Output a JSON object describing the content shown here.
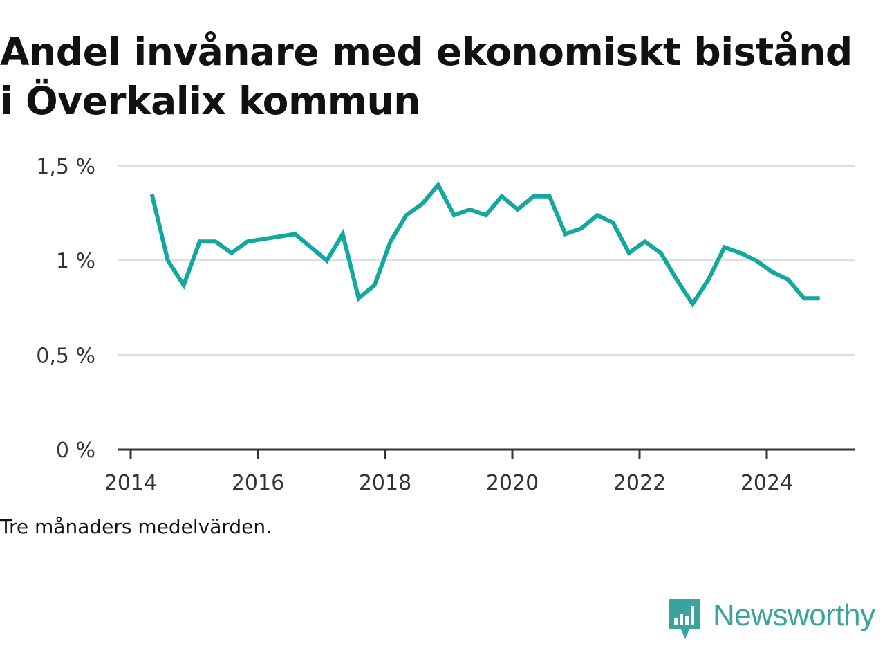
{
  "chart_data": {
    "type": "line",
    "title": "Andel invånare med ekonomiskt bistånd i Överkalix kommun",
    "caption": "Tre månaders medelvärden.",
    "xlabel": "",
    "ylabel": "",
    "x_ticks": [
      "2014",
      "2016",
      "2018",
      "2020",
      "2022",
      "2024"
    ],
    "y_ticks": [
      "0 %",
      "0,5 %",
      "1 %",
      "1,5 %"
    ],
    "ylim": [
      0,
      1.5
    ],
    "xlim": [
      "2013-11",
      "2025-04"
    ],
    "grid": true,
    "legend": "none",
    "series": [
      {
        "color": "#13a89e",
        "points": [
          {
            "x": "2014-05",
            "y": 1.35
          },
          {
            "x": "2014-08",
            "y": 1.0
          },
          {
            "x": "2014-11",
            "y": 0.87
          },
          {
            "x": "2015-02",
            "y": 1.1
          },
          {
            "x": "2015-05",
            "y": 1.1
          },
          {
            "x": "2015-08",
            "y": 1.04
          },
          {
            "x": "2015-11",
            "y": 1.1
          },
          {
            "x": "2016-08",
            "y": 1.14
          },
          {
            "x": "2017-02",
            "y": 1.0
          },
          {
            "x": "2017-05",
            "y": 1.14
          },
          {
            "x": "2017-08",
            "y": 0.8
          },
          {
            "x": "2017-11",
            "y": 0.87
          },
          {
            "x": "2018-02",
            "y": 1.1
          },
          {
            "x": "2018-05",
            "y": 1.24
          },
          {
            "x": "2018-08",
            "y": 1.3
          },
          {
            "x": "2018-11",
            "y": 1.4
          },
          {
            "x": "2019-02",
            "y": 1.24
          },
          {
            "x": "2019-05",
            "y": 1.27
          },
          {
            "x": "2019-08",
            "y": 1.24
          },
          {
            "x": "2019-11",
            "y": 1.34
          },
          {
            "x": "2020-02",
            "y": 1.27
          },
          {
            "x": "2020-05",
            "y": 1.34
          },
          {
            "x": "2020-08",
            "y": 1.34
          },
          {
            "x": "2020-11",
            "y": 1.14
          },
          {
            "x": "2021-02",
            "y": 1.17
          },
          {
            "x": "2021-05",
            "y": 1.24
          },
          {
            "x": "2021-08",
            "y": 1.2
          },
          {
            "x": "2021-11",
            "y": 1.04
          },
          {
            "x": "2022-02",
            "y": 1.1
          },
          {
            "x": "2022-05",
            "y": 1.04
          },
          {
            "x": "2022-08",
            "y": 0.9
          },
          {
            "x": "2022-11",
            "y": 0.77
          },
          {
            "x": "2023-02",
            "y": 0.9
          },
          {
            "x": "2023-05",
            "y": 1.07
          },
          {
            "x": "2023-08",
            "y": 1.04
          },
          {
            "x": "2023-11",
            "y": 1.0
          },
          {
            "x": "2024-02",
            "y": 0.94
          },
          {
            "x": "2024-05",
            "y": 0.9
          },
          {
            "x": "2024-08",
            "y": 0.8
          },
          {
            "x": "2024-11",
            "y": 0.8
          }
        ]
      }
    ]
  },
  "brand": {
    "name": "Newsworthy",
    "icon": "newsworthy-logo-icon",
    "color": "#3aa39d"
  }
}
